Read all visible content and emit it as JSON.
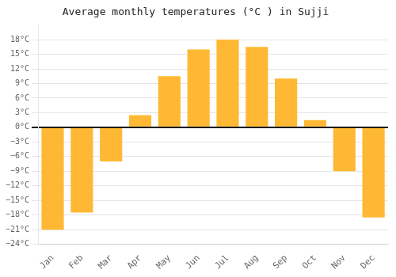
{
  "chart_data": {
    "type": "bar",
    "title": "Average monthly temperatures (°C ) in Sujji",
    "categories": [
      "Jan",
      "Feb",
      "Mar",
      "Apr",
      "May",
      "Jun",
      "Jul",
      "Aug",
      "Sep",
      "Oct",
      "Nov",
      "Dec"
    ],
    "values": [
      -21,
      -17.5,
      -7,
      2.5,
      10.5,
      16,
      18,
      16.5,
      10,
      1.5,
      -9,
      -18.5
    ],
    "color": "#FFB833",
    "ylim": [
      -24,
      21
    ],
    "yticks": [
      {
        "value": -24,
        "label": "−24°C"
      },
      {
        "value": -21,
        "label": "−21°C"
      },
      {
        "value": -18,
        "label": "−18°C"
      },
      {
        "value": -15,
        "label": "−15°C"
      },
      {
        "value": -12,
        "label": "−12°C"
      },
      {
        "value": -9,
        "label": "−9°C"
      },
      {
        "value": -6,
        "label": "−6°C"
      },
      {
        "value": -3,
        "label": "−3°C"
      },
      {
        "value": 0,
        "label": "0°C"
      },
      {
        "value": 3,
        "label": "3°C"
      },
      {
        "value": 6,
        "label": "6°C"
      },
      {
        "value": 9,
        "label": "9°C"
      },
      {
        "value": 12,
        "label": "12°C"
      },
      {
        "value": 15,
        "label": "15°C"
      },
      {
        "value": 18,
        "label": "18°C"
      }
    ],
    "grid": true
  }
}
